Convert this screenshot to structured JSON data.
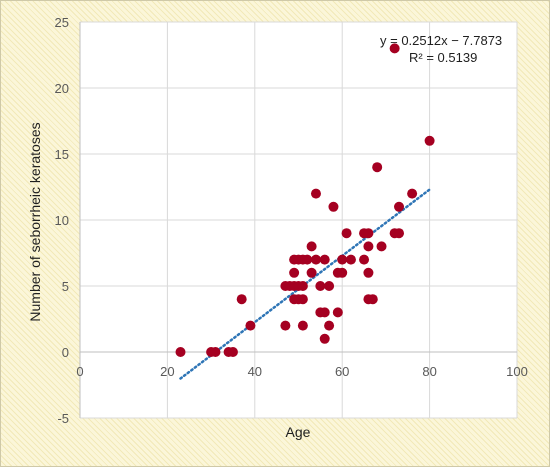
{
  "chart_data": {
    "type": "scatter",
    "xlabel": "Age",
    "ylabel": "Number of seborrheic keratoses",
    "xlim": [
      0,
      100
    ],
    "ylim": [
      -5,
      25
    ],
    "x_ticks": [
      0,
      20,
      40,
      60,
      80,
      100
    ],
    "y_ticks": [
      -5,
      0,
      5,
      10,
      15,
      20,
      25
    ],
    "grid": true,
    "marker_color": "#a50021",
    "trendline_color": "#2e75b6",
    "trendline": {
      "slope": 0.2512,
      "intercept": -7.7873,
      "x_range": [
        23,
        80
      ],
      "equation": "y = 0.2512x  − 7.7873",
      "r_squared": "R² = 0.5139"
    },
    "points": [
      {
        "x": 23,
        "y": 0
      },
      {
        "x": 30,
        "y": 0
      },
      {
        "x": 31,
        "y": 0
      },
      {
        "x": 34,
        "y": 0
      },
      {
        "x": 35,
        "y": 0
      },
      {
        "x": 37,
        "y": 4
      },
      {
        "x": 39,
        "y": 2
      },
      {
        "x": 47,
        "y": 2
      },
      {
        "x": 47,
        "y": 5
      },
      {
        "x": 48,
        "y": 5
      },
      {
        "x": 49,
        "y": 7
      },
      {
        "x": 49,
        "y": 6
      },
      {
        "x": 49,
        "y": 5
      },
      {
        "x": 49,
        "y": 4
      },
      {
        "x": 50,
        "y": 7
      },
      {
        "x": 50,
        "y": 4
      },
      {
        "x": 50,
        "y": 5
      },
      {
        "x": 51,
        "y": 7
      },
      {
        "x": 51,
        "y": 5
      },
      {
        "x": 51,
        "y": 4
      },
      {
        "x": 51,
        "y": 2
      },
      {
        "x": 52,
        "y": 7
      },
      {
        "x": 53,
        "y": 8
      },
      {
        "x": 53,
        "y": 6
      },
      {
        "x": 54,
        "y": 12
      },
      {
        "x": 54,
        "y": 7
      },
      {
        "x": 55,
        "y": 5
      },
      {
        "x": 55,
        "y": 3
      },
      {
        "x": 56,
        "y": 7
      },
      {
        "x": 56,
        "y": 3
      },
      {
        "x": 56,
        "y": 1
      },
      {
        "x": 57,
        "y": 5
      },
      {
        "x": 57,
        "y": 2
      },
      {
        "x": 58,
        "y": 11
      },
      {
        "x": 59,
        "y": 6
      },
      {
        "x": 59,
        "y": 3
      },
      {
        "x": 60,
        "y": 6
      },
      {
        "x": 60,
        "y": 7
      },
      {
        "x": 61,
        "y": 9
      },
      {
        "x": 62,
        "y": 7
      },
      {
        "x": 65,
        "y": 9
      },
      {
        "x": 65,
        "y": 7
      },
      {
        "x": 66,
        "y": 9
      },
      {
        "x": 66,
        "y": 8
      },
      {
        "x": 66,
        "y": 6
      },
      {
        "x": 66,
        "y": 4
      },
      {
        "x": 67,
        "y": 4
      },
      {
        "x": 68,
        "y": 14
      },
      {
        "x": 69,
        "y": 8
      },
      {
        "x": 72,
        "y": 23
      },
      {
        "x": 72,
        "y": 9
      },
      {
        "x": 73,
        "y": 11
      },
      {
        "x": 73,
        "y": 9
      },
      {
        "x": 76,
        "y": 12
      },
      {
        "x": 80,
        "y": 16
      }
    ]
  }
}
